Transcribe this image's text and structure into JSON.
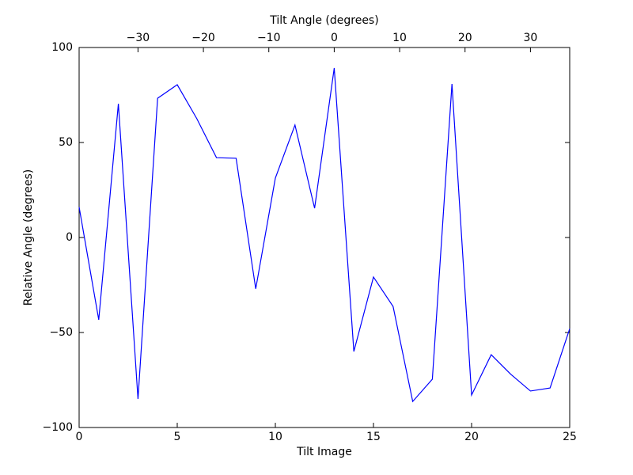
{
  "chart_data": {
    "type": "line",
    "xlabel": "Tilt Image",
    "ylabel": "Relative Angle (degrees)",
    "x2label": "Tilt Angle (degrees)",
    "x": [
      0,
      1,
      2,
      3,
      4,
      5,
      6,
      7,
      8,
      9,
      10,
      11,
      12,
      13,
      14,
      15,
      16,
      17,
      18,
      19,
      20,
      21,
      22,
      23,
      24,
      25
    ],
    "values": [
      16,
      -43.3,
      70.4,
      -85,
      73.3,
      80.4,
      62.5,
      42,
      41.7,
      -27,
      31.3,
      59.2,
      15.4,
      89.2,
      -60,
      -20.8,
      -36.3,
      -86.3,
      -74.6,
      80.8,
      -82.9,
      -61.7,
      -72,
      -80.8,
      -79.2,
      -48
    ],
    "color": "#0000ff",
    "xlim": [
      0,
      25
    ],
    "xticks": [
      0,
      5,
      10,
      15,
      20,
      25
    ],
    "ylim": [
      -100,
      100
    ],
    "yticks": [
      {
        "value": -100,
        "label": "−100"
      },
      {
        "value": -50,
        "label": "−50"
      },
      0,
      50,
      100
    ],
    "x2lim": [
      -39,
      36
    ],
    "x2ticks": [
      {
        "value": -30,
        "label": "−30"
      },
      {
        "value": -20,
        "label": "−20"
      },
      {
        "value": -10,
        "label": "−10"
      },
      0,
      10,
      20,
      30
    ]
  }
}
